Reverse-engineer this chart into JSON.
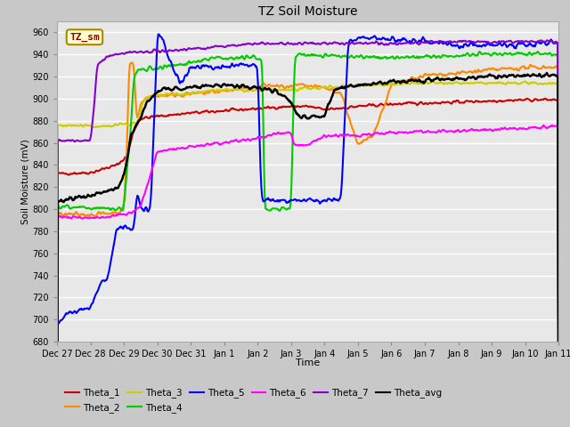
{
  "title": "TZ Soil Moisture",
  "ylabel": "Soil Moisture (mV)",
  "xlabel": "Time",
  "ylim": [
    680,
    970
  ],
  "yticks": [
    680,
    700,
    720,
    740,
    760,
    780,
    800,
    820,
    840,
    860,
    880,
    900,
    920,
    940,
    960
  ],
  "plot_bg": "#e8e8e8",
  "fig_bg": "#c8c8c8",
  "series_colors": {
    "Theta_1": "#cc0000",
    "Theta_2": "#ff8800",
    "Theta_3": "#cccc00",
    "Theta_4": "#00cc00",
    "Theta_5": "#0000ff",
    "Theta_6": "#ff00ff",
    "Theta_7": "#8800cc",
    "Theta_avg": "#000000"
  },
  "legend_label": "TZ_sm",
  "legend_label_color": "#880000",
  "legend_label_bg": "#ffffcc",
  "legend_label_border": "#aa8800",
  "tick_labels": [
    "Dec 27",
    "Dec 28",
    "Dec 29",
    "Dec 30",
    "Dec 31",
    "Jan 1",
    "Jan 2",
    "Jan 3",
    "Jan 4",
    "Jan 5",
    "Jan 6",
    "Jan 7",
    "Jan 8",
    "Jan 9",
    "Jan 10",
    "Jan 11"
  ],
  "n_points": 600,
  "linewidth": 1.5
}
